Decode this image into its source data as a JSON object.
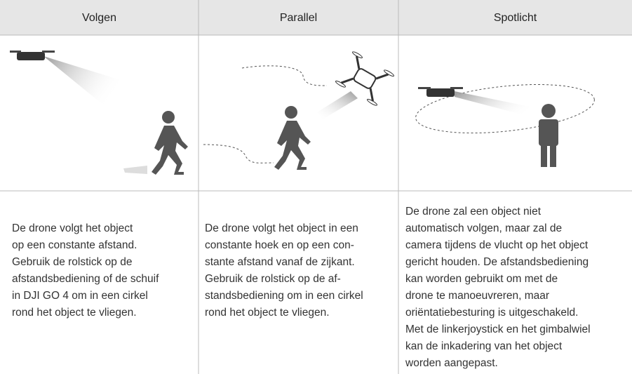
{
  "columns": [
    {
      "title": "Volgen",
      "lines": [
        "De drone volgt het object",
        "op een constante afstand.",
        "Gebruik de rolstick op de",
        "afstandsbediening of de schuif",
        "in DJI GO 4 om in een cirkel",
        "rond het object te vliegen."
      ]
    },
    {
      "title": "Parallel",
      "lines": [
        "De drone volgt het object in een",
        "constante hoek en op een con-",
        "stante afstand vanaf de zijkant.",
        "Gebruik de rolstick op de af-",
        "standsbediening om in een cirkel",
        "rond het object te vliegen."
      ]
    },
    {
      "title": "Spotlicht",
      "lines": [
        "De drone zal een object niet",
        "automatisch volgen, maar zal de",
        "camera tijdens de vlucht op het object",
        "gericht houden. De afstandsbediening",
        "kan worden gebruikt om met de",
        "drone te manoeuvreren, maar",
        "oriëntatiebesturing is uitgeschakeld.",
        "Met de linkerjoystick en het gimbalwiel",
        "kan de inkadering van het object",
        "worden aangepast."
      ]
    }
  ]
}
